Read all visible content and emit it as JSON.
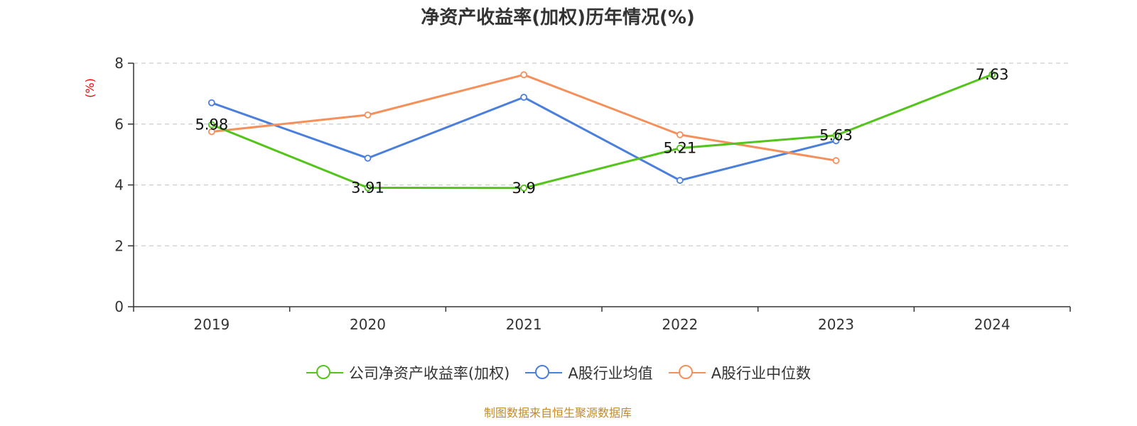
{
  "chart_data": {
    "type": "line",
    "title": "净资产收益率(加权)历年情况(%)",
    "ylabel": "(%)",
    "xlabel": "",
    "categories": [
      "2019",
      "2020",
      "2021",
      "2022",
      "2023",
      "2024"
    ],
    "ylim": [
      0,
      8
    ],
    "yticks": [
      0,
      2,
      4,
      6,
      8
    ],
    "grid": true,
    "legend_position": "bottom",
    "series": [
      {
        "name": "公司净资产收益率(加权)",
        "color": "#52c41a",
        "values": [
          5.98,
          3.91,
          3.9,
          5.21,
          5.63,
          7.63
        ],
        "labels": [
          "5.98",
          "3.91",
          "3.9",
          "5.21",
          "5.63",
          "7.63"
        ]
      },
      {
        "name": "A股行业均值",
        "color": "#4a7fdc",
        "values": [
          6.7,
          4.88,
          6.88,
          4.15,
          5.45,
          null
        ]
      },
      {
        "name": "A股行业中位数",
        "color": "#f5905a",
        "values": [
          5.75,
          6.3,
          7.62,
          5.65,
          4.8,
          null
        ]
      }
    ],
    "source": "制图数据来自恒生聚源数据库"
  }
}
